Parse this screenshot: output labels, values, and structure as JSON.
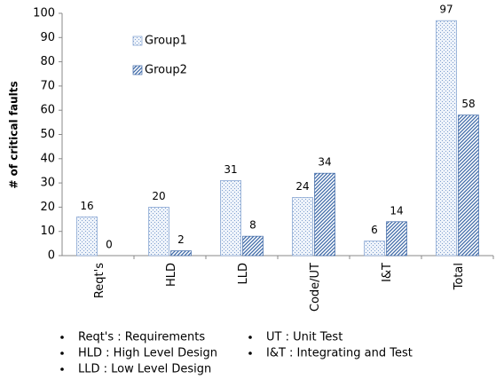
{
  "chart_data": {
    "type": "bar",
    "ylabel": "# of critical faults",
    "categories": [
      "Reqt's",
      "HLD",
      "LLD",
      "Code/UT",
      "I&T",
      "Total"
    ],
    "series": [
      {
        "name": "Group1",
        "color": "#7f9fcf",
        "values": [
          16,
          20,
          31,
          24,
          6,
          97
        ]
      },
      {
        "name": "Group2",
        "color": "#3f6aa8",
        "values": [
          0,
          2,
          8,
          34,
          14,
          58
        ]
      }
    ],
    "ylim": [
      0,
      100
    ],
    "yticks": [
      0,
      10,
      20,
      30,
      40,
      50,
      60,
      70,
      80,
      90,
      100
    ],
    "grid": false,
    "notes": [
      "Reqt's : Requirements",
      "HLD : High Level Design",
      "LLD : Low Level Design",
      "UT : Unit Test",
      "I&T : Integrating and Test"
    ]
  }
}
